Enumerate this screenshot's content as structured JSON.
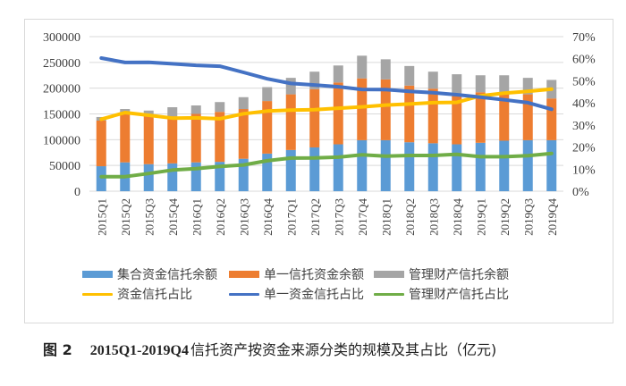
{
  "chart_data": {
    "type": "bar",
    "stacked": true,
    "title": "",
    "xlabel": "",
    "ylabel": "",
    "y2label": "",
    "categories": [
      "2015Q1",
      "2015Q2",
      "2015Q3",
      "2015Q4",
      "2016Q1",
      "2016Q2",
      "2016Q3",
      "2016Q4",
      "2017Q1",
      "2017Q2",
      "2017Q3",
      "2017Q4",
      "2018Q1",
      "2018Q2",
      "2018Q3",
      "2018Q4",
      "2019Q1",
      "2019Q2",
      "2019Q3",
      "2019Q4"
    ],
    "ylim": [
      0,
      300000
    ],
    "yticks": [
      "0",
      "50000",
      "100000",
      "150000",
      "200000",
      "250000",
      "300000"
    ],
    "y2lim": [
      0,
      0.7
    ],
    "y2ticks": [
      "0%",
      "10%",
      "20%",
      "30%",
      "40%",
      "50%",
      "60%",
      "70%"
    ],
    "grid": true,
    "legend_position": "bottom",
    "series": [
      {
        "name": "集合资金信托余额",
        "kind": "bar",
        "axis": "left",
        "color": "#5b9bd5",
        "values": [
          48500,
          56000,
          52500,
          54000,
          56000,
          57000,
          63000,
          73000,
          80000,
          85000,
          91000,
          99000,
          99000,
          95000,
          93000,
          91000,
          94000,
          98000,
          99000,
          99000
        ]
      },
      {
        "name": "单一信托资金余额",
        "kind": "bar",
        "axis": "left",
        "color": "#ed7d31",
        "values": [
          88500,
          98000,
          97000,
          91500,
          94000,
          97000,
          96500,
          102000,
          108000,
          113000,
          120000,
          120000,
          118000,
          110000,
          106000,
          98000,
          98000,
          91000,
          89000,
          81000
        ]
      },
      {
        "name": "管理财产信托余额",
        "kind": "bar",
        "axis": "left",
        "color": "#a5a5a5",
        "values": [
          7000,
          5500,
          7000,
          17500,
          16500,
          19000,
          23000,
          27000,
          32000,
          34000,
          33000,
          44000,
          39000,
          38000,
          33000,
          38000,
          33000,
          36000,
          32000,
          36000
        ]
      },
      {
        "name": "资金信托占比",
        "kind": "line",
        "axis": "right",
        "color": "#ffc000",
        "values": [
          0.326,
          0.356,
          0.344,
          0.331,
          0.332,
          0.328,
          0.351,
          0.363,
          0.367,
          0.369,
          0.376,
          0.382,
          0.39,
          0.395,
          0.401,
          0.402,
          0.432,
          0.444,
          0.452,
          0.462
        ]
      },
      {
        "name": "单一资金信托占比",
        "kind": "line",
        "axis": "right",
        "color": "#4472c4",
        "values": [
          0.603,
          0.583,
          0.584,
          0.577,
          0.57,
          0.566,
          0.538,
          0.509,
          0.488,
          0.481,
          0.473,
          0.461,
          0.46,
          0.452,
          0.446,
          0.437,
          0.426,
          0.414,
          0.401,
          0.371
        ]
      },
      {
        "name": "管理财产信托占比",
        "kind": "line",
        "axis": "right",
        "color": "#70ad47",
        "values": [
          0.066,
          0.066,
          0.08,
          0.096,
          0.102,
          0.112,
          0.119,
          0.138,
          0.15,
          0.151,
          0.154,
          0.165,
          0.159,
          0.162,
          0.162,
          0.167,
          0.156,
          0.156,
          0.161,
          0.171
        ]
      }
    ]
  },
  "legend": {
    "row1": [
      "集合资金信托余额",
      "单一信托资金余额",
      "管理财产信托余额"
    ],
    "row2": [
      "资金信托占比",
      "单一资金信托占比",
      "管理财产信托占比"
    ]
  },
  "caption": {
    "figure_label": "图 2",
    "range": "2015Q1-2019Q4",
    "text": "信托资产按资金来源分类的规模及其占比（亿元)"
  }
}
